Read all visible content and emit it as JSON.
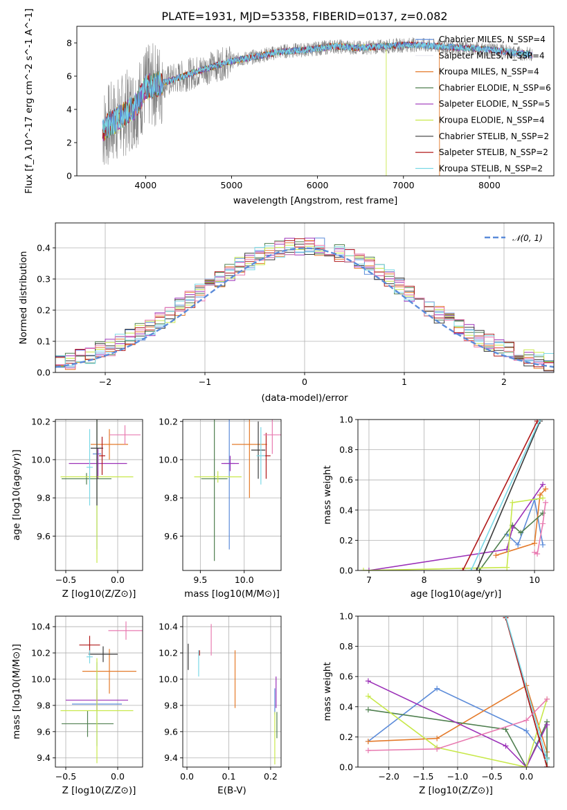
{
  "title": "PLATE=1931, MJD=53358, FIBERID=0137, z=0.082",
  "colors": {
    "Chabrier MILES": "#5b8bd9",
    "Salpeter MILES": "#e8e8f0",
    "Kroupa MILES": "#e47a2a",
    "Chabrier ELODIE": "#4f7f4f",
    "Salpeter ELODIE": "#9b30b8",
    "Kroupa ELODIE": "#c8e84a",
    "Chabrier STELIB": "#3a3a3a",
    "Salpeter STELIB": "#b01818",
    "Kroupa STELIB": "#7ad8e6",
    "Kroupa ELODIE pink": "#e87ab0",
    "gaussian": "#5b8bd9"
  },
  "chart_data": [
    {
      "id": "spectrum",
      "type": "line",
      "title": "PLATE=1931, MJD=53358, FIBERID=0137, z=0.082",
      "xlabel": "wavelength [Angstrom, rest frame]",
      "ylabel": "Flux [f_λ 10^-17 erg cm^-2 s^-1 A^-1]",
      "xlim": [
        3200,
        8750
      ],
      "ylim": [
        0,
        9
      ],
      "xticks": [
        "4000",
        "5000",
        "6000",
        "7000",
        "8000"
      ],
      "yticks": [
        "0",
        "2",
        "4",
        "6",
        "8"
      ],
      "legend": [
        "Chabrier MILES, N_SSP=4",
        "Salpeter MILES, N_SSP=4",
        "Kroupa MILES, N_SSP=4",
        "Chabrier ELODIE, N_SSP=6",
        "Salpeter ELODIE, N_SSP=5",
        "Kroupa ELODIE, N_SSP=4",
        "Chabrier STELIB, N_SSP=2",
        "Salpeter STELIB, N_SSP=2",
        "Kroupa STELIB, N_SSP=2"
      ],
      "legend_position": "right",
      "model_continuum": {
        "x": [
          3500,
          3700,
          3900,
          4000,
          4200,
          4500,
          4800,
          5000,
          5300,
          5600,
          5900,
          6200,
          6500,
          6800,
          7100,
          7400,
          7700,
          8000,
          8300,
          8500
        ],
        "y": [
          2.8,
          3.5,
          4.3,
          5.3,
          5.6,
          6.1,
          6.6,
          6.9,
          7.2,
          7.5,
          7.6,
          7.8,
          7.7,
          7.8,
          7.9,
          7.8,
          7.7,
          7.6,
          7.4,
          7.3
        ]
      }
    },
    {
      "id": "residuals",
      "type": "bar",
      "xlabel": "(data-model)/error",
      "ylabel": "Normed distribution",
      "xlim": [
        -2.5,
        2.5
      ],
      "ylim": [
        0,
        0.48
      ],
      "xticks": [
        "−2",
        "−1",
        "0",
        "1",
        "2"
      ],
      "yticks": [
        "0.0",
        "0.1",
        "0.2",
        "0.3",
        "0.4"
      ],
      "legend": [
        "𝒩(0, 1)"
      ],
      "legend_position": "top-right",
      "grid": true,
      "bin_width": 0.1
    },
    {
      "id": "age-Z",
      "type": "scatter",
      "xlabel": "Z [log10(Z/Z⊙)]",
      "ylabel": "age  [log10(age/yr)]",
      "xlim": [
        -0.6,
        0.24
      ],
      "ylim": [
        9.42,
        10.21
      ],
      "xticks": [
        "−0.5",
        "0.0"
      ],
      "yticks": [
        "9.6",
        "9.8",
        "10.0",
        "10.2"
      ],
      "grid": true,
      "points": [
        {
          "model": "Chabrier MILES",
          "x": -0.2,
          "xerr": 0.04,
          "y": 10.03,
          "yerr": 0.5
        },
        {
          "model": "Kroupa MILES",
          "x": -0.08,
          "xerr": 0.18,
          "y": 10.08,
          "yerr": 0.08
        },
        {
          "model": "Chabrier ELODIE",
          "x": -0.3,
          "xerr": 0.24,
          "y": 9.9,
          "yerr": 0.03
        },
        {
          "model": "Salpeter ELODIE",
          "x": -0.19,
          "xerr": 0.28,
          "y": 9.98,
          "yerr": 0.08
        },
        {
          "model": "Kroupa ELODIE",
          "x": -0.2,
          "xerr": 0.35,
          "y": 9.91,
          "yerr": 0.45
        },
        {
          "model": "Chabrier STELIB",
          "x": -0.2,
          "xerr": 0.06,
          "y": 10.06,
          "yerr": 0.3
        },
        {
          "model": "Salpeter STELIB",
          "x": -0.15,
          "xerr": 0.03,
          "y": 10.02,
          "yerr": 0.1
        },
        {
          "model": "Kroupa STELIB",
          "x": -0.27,
          "xerr": 0.03,
          "y": 9.96,
          "yerr": 0.2
        },
        {
          "model": "Kroupa ELODIE pink",
          "x": 0.07,
          "xerr": 0.15,
          "y": 10.13,
          "yerr": 0.05
        }
      ]
    },
    {
      "id": "age-mass",
      "type": "scatter",
      "xlabel": "mass [log10(M/M⊙)]",
      "ylabel": "",
      "xlim": [
        9.3,
        10.42
      ],
      "ylim": [
        9.42,
        10.21
      ],
      "xticks": [
        "9.5",
        "10.0"
      ],
      "yticks": [
        "9.6",
        "9.8",
        "10.0",
        "10.2"
      ],
      "grid": true,
      "points": [
        {
          "model": "Chabrier MILES",
          "x": 9.83,
          "xerr": 0.06,
          "y": 9.98,
          "yerr": 0.45
        },
        {
          "model": "Kroupa MILES",
          "x": 10.06,
          "xerr": 0.2,
          "y": 10.08,
          "yerr": 0.28
        },
        {
          "model": "Chabrier ELODIE",
          "x": 9.66,
          "xerr": 0.15,
          "y": 9.9,
          "yerr": 0.43
        },
        {
          "model": "Salpeter ELODIE",
          "x": 9.84,
          "xerr": 0.1,
          "y": 9.98,
          "yerr": 0.04
        },
        {
          "model": "Kroupa ELODIE",
          "x": 9.7,
          "xerr": 0.27,
          "y": 9.91,
          "yerr": 0.03
        },
        {
          "model": "Chabrier STELIB",
          "x": 10.16,
          "xerr": 0.08,
          "y": 10.05,
          "yerr": 0.15
        },
        {
          "model": "Salpeter STELIB",
          "x": 10.25,
          "xerr": 0.05,
          "y": 10.02,
          "yerr": 0.12
        },
        {
          "model": "Kroupa STELIB",
          "x": 10.19,
          "xerr": 0.05,
          "y": 10.02,
          "yerr": 0.15
        },
        {
          "model": "Kroupa ELODIE pink",
          "x": 10.32,
          "xerr": 0.1,
          "y": 10.13,
          "yerr": 0.1
        }
      ]
    },
    {
      "id": "massweight-age",
      "type": "line",
      "xlabel": "age  [log10(age/yr)]",
      "ylabel": "mass weight",
      "xlim": [
        6.8,
        10.35
      ],
      "ylim": [
        0,
        1
      ],
      "xticks": [
        "7",
        "8",
        "9",
        "10"
      ],
      "yticks": [
        "0.0",
        "0.2",
        "0.4",
        "0.6",
        "0.8",
        "1.0"
      ],
      "grid": true,
      "series": [
        {
          "model": "Chabrier MILES",
          "x": [
            9.5,
            9.7,
            10.0,
            10.15
          ],
          "y": [
            0.24,
            0.17,
            0.47,
            0.17
          ]
        },
        {
          "model": "Kroupa MILES",
          "x": [
            9.3,
            10.0,
            10.1,
            10.2
          ],
          "y": [
            0.1,
            0.18,
            0.5,
            0.54
          ]
        },
        {
          "model": "Chabrier ELODIE",
          "x": [
            9.0,
            9.6,
            9.75,
            10.15
          ],
          "y": [
            0.0,
            0.3,
            0.25,
            0.38
          ]
        },
        {
          "model": "Salpeter ELODIE",
          "x": [
            7.0,
            9.5,
            9.6,
            10.15
          ],
          "y": [
            0.0,
            0.14,
            0.28,
            0.57
          ]
        },
        {
          "model": "Kroupa ELODIE",
          "x": [
            6.9,
            9.5,
            9.6,
            10.15
          ],
          "y": [
            0.0,
            0.02,
            0.45,
            0.48
          ]
        },
        {
          "model": "Chabrier STELIB",
          "x": [
            8.95,
            10.1
          ],
          "y": [
            0.0,
            0.99
          ]
        },
        {
          "model": "Salpeter STELIB",
          "x": [
            8.7,
            10.05
          ],
          "y": [
            0.0,
            0.99
          ]
        },
        {
          "model": "Kroupa STELIB",
          "x": [
            8.85,
            10.1
          ],
          "y": [
            0.0,
            1.0
          ]
        },
        {
          "model": "Kroupa ELODIE pink",
          "x": [
            10.0,
            10.05,
            10.15,
            10.2
          ],
          "y": [
            0.12,
            0.11,
            0.31,
            0.45
          ]
        }
      ]
    },
    {
      "id": "mass-Z",
      "type": "scatter",
      "xlabel": "Z [log10(Z/Z⊙)]",
      "ylabel": "mass [log10(M/M⊙)]",
      "xlim": [
        -0.6,
        0.24
      ],
      "ylim": [
        9.33,
        10.48
      ],
      "xticks": [
        "−0.5",
        "0.0"
      ],
      "yticks": [
        "9.4",
        "9.6",
        "9.8",
        "10.0",
        "10.2",
        "10.4"
      ],
      "grid": true,
      "points": [
        {
          "model": "Chabrier MILES",
          "x": -0.2,
          "xerr": 0.24,
          "y": 9.81,
          "yerr": 0.32
        },
        {
          "model": "Kroupa MILES",
          "x": -0.08,
          "xerr": 0.26,
          "y": 10.06,
          "yerr": 0.17
        },
        {
          "model": "Chabrier ELODIE",
          "x": -0.29,
          "xerr": 0.25,
          "y": 9.66,
          "yerr": 0.1
        },
        {
          "model": "Salpeter ELODIE",
          "x": -0.2,
          "xerr": 0.3,
          "y": 9.84,
          "yerr": 0.08
        },
        {
          "model": "Kroupa ELODIE",
          "x": -0.2,
          "xerr": 0.35,
          "y": 9.76,
          "yerr": 0.4
        },
        {
          "model": "Chabrier STELIB",
          "x": -0.14,
          "xerr": 0.14,
          "y": 10.19,
          "yerr": 0.06
        },
        {
          "model": "Salpeter STELIB",
          "x": -0.27,
          "xerr": 0.1,
          "y": 10.26,
          "yerr": 0.07
        },
        {
          "model": "Kroupa STELIB",
          "x": -0.27,
          "xerr": 0.03,
          "y": 10.17,
          "yerr": 0.05
        },
        {
          "model": "Kroupa ELODIE pink",
          "x": 0.08,
          "xerr": 0.17,
          "y": 10.37,
          "yerr": 0.07
        }
      ]
    },
    {
      "id": "mass-EBV",
      "type": "scatter",
      "xlabel": "E(B-V)",
      "ylabel": "",
      "xlim": [
        -0.01,
        0.225
      ],
      "ylim": [
        9.33,
        10.48
      ],
      "xticks": [
        "0.0",
        "0.1",
        "0.2"
      ],
      "yticks": [
        "9.4",
        "9.6",
        "9.8",
        "10.0",
        "10.2",
        "10.4"
      ],
      "grid": true,
      "points": [
        {
          "model": "Chabrier MILES",
          "x": 0.21,
          "yerr": 0.1,
          "y": 9.83
        },
        {
          "model": "Kroupa MILES",
          "x": 0.115,
          "yerr": 0.22,
          "y": 10.0
        },
        {
          "model": "Chabrier ELODIE",
          "x": 0.215,
          "yerr": 0.1,
          "y": 9.65
        },
        {
          "model": "Salpeter ELODIE",
          "x": 0.213,
          "yerr": 0.12,
          "y": 9.9
        },
        {
          "model": "Kroupa ELODIE",
          "x": 0.21,
          "yerr": 0.2,
          "y": 9.55
        },
        {
          "model": "Chabrier STELIB",
          "x": 0.003,
          "yerr": 0.1,
          "y": 10.17
        },
        {
          "model": "Salpeter STELIB",
          "x": 0.03,
          "yerr": 0.02,
          "y": 10.2
        },
        {
          "model": "Kroupa STELIB",
          "x": 0.028,
          "yerr": 0.1,
          "y": 10.12
        },
        {
          "model": "Kroupa ELODIE pink",
          "x": 0.058,
          "yerr": 0.12,
          "y": 10.3
        }
      ]
    },
    {
      "id": "massweight-Z",
      "type": "line",
      "xlabel": "Z [log10(Z/Z⊙)]",
      "ylabel": "mass weight",
      "xlim": [
        -2.45,
        0.4
      ],
      "ylim": [
        0,
        1
      ],
      "xticks": [
        "−2.0",
        "−1.5",
        "−1.0",
        "−0.5",
        "0.0"
      ],
      "yticks": [
        "0.0",
        "0.2",
        "0.4",
        "0.6",
        "0.8",
        "1.0"
      ],
      "grid": true,
      "series": [
        {
          "model": "Chabrier MILES",
          "x": [
            -2.3,
            -1.3,
            0.0,
            0.3
          ],
          "y": [
            0.17,
            0.52,
            0.24,
            0.06
          ]
        },
        {
          "model": "Kroupa MILES",
          "x": [
            -2.3,
            -1.3,
            0.0,
            0.3
          ],
          "y": [
            0.17,
            0.19,
            0.54,
            0.1
          ]
        },
        {
          "model": "Chabrier ELODIE",
          "x": [
            -2.3,
            -0.3,
            0.0,
            0.3,
            0.3,
            0.3
          ],
          "y": [
            0.38,
            0.25,
            0.0,
            0.3,
            0.06,
            0.0
          ]
        },
        {
          "model": "Salpeter ELODIE",
          "x": [
            -2.3,
            -0.3,
            0.0,
            0.3
          ],
          "y": [
            0.57,
            0.14,
            0.0,
            0.28
          ]
        },
        {
          "model": "Kroupa ELODIE",
          "x": [
            -2.3,
            -1.3,
            0.0,
            0.3
          ],
          "y": [
            0.47,
            0.13,
            0.0,
            0.45
          ]
        },
        {
          "model": "Chabrier STELIB",
          "x": [
            -0.3,
            0.3
          ],
          "y": [
            0.99,
            0.0
          ]
        },
        {
          "model": "Salpeter STELIB",
          "x": [
            -0.3,
            0.3
          ],
          "y": [
            0.99,
            0.0
          ]
        },
        {
          "model": "Kroupa STELIB",
          "x": [
            -0.3,
            0.3
          ],
          "y": [
            1.0,
            0.05
          ]
        },
        {
          "model": "Kroupa ELODIE pink",
          "x": [
            -2.3,
            -1.3,
            0.0,
            0.3
          ],
          "y": [
            0.11,
            0.12,
            0.31,
            0.45
          ]
        }
      ]
    }
  ]
}
